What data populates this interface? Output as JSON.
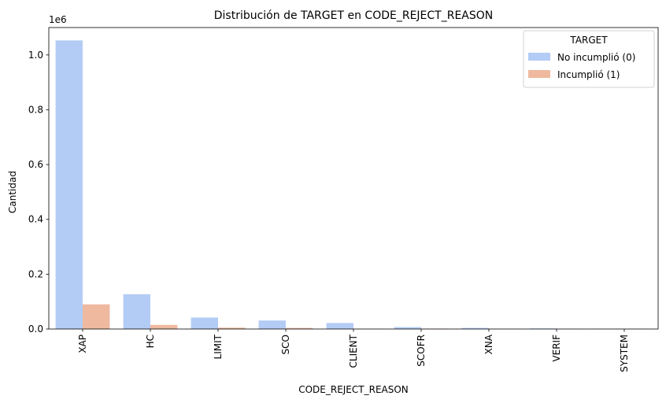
{
  "chart_data": {
    "type": "bar",
    "title": "Distribución de TARGET en CODE_REJECT_REASON",
    "xlabel": "CODE_REJECT_REASON",
    "ylabel": "Cantidad",
    "y_offset_text": "1e6",
    "ylim": [
      0,
      1.1
    ],
    "yticks": [
      "0.0",
      "0.2",
      "0.4",
      "0.6",
      "0.8",
      "1.0"
    ],
    "ytick_values": [
      0,
      0.2,
      0.4,
      0.6,
      0.8,
      1.0
    ],
    "categories": [
      "XAP",
      "HC",
      "LIMIT",
      "SCO",
      "CLIENT",
      "SCOFR",
      "XNA",
      "VERIF",
      "SYSTEM"
    ],
    "series": [
      {
        "name": "No incumplió (0)",
        "color": "#b3ccf5",
        "values": [
          1.053,
          0.127,
          0.042,
          0.031,
          0.022,
          0.007,
          0.004,
          0.002,
          0.001
        ]
      },
      {
        "name": "Incumplió (1)",
        "color": "#efb9a0",
        "values": [
          0.09,
          0.015,
          0.005,
          0.004,
          0.001,
          0.0015,
          0.0005,
          0.0002,
          0.0001
        ]
      }
    ],
    "legend": {
      "title": "TARGET",
      "placement": "top-right"
    },
    "grid": false
  }
}
